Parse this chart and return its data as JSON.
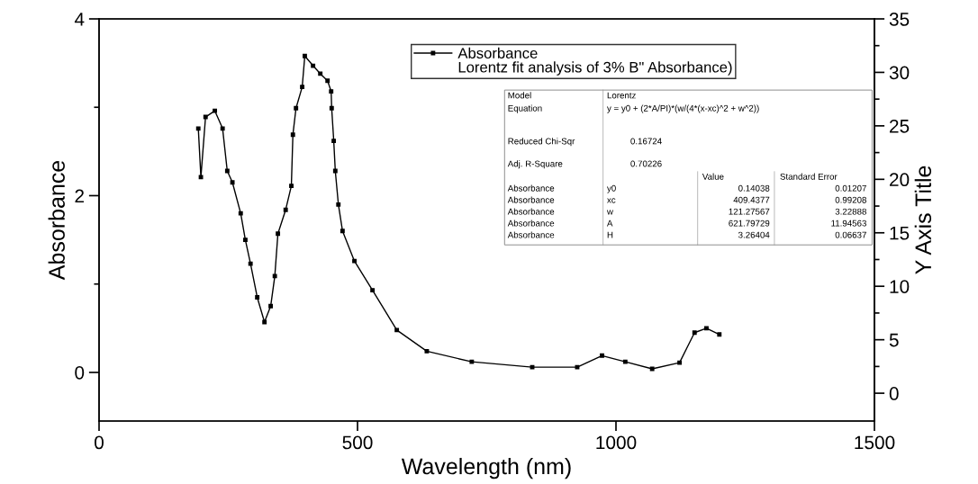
{
  "chart_data": {
    "type": "line",
    "xlabel": "Wavelength (nm)",
    "ylabel": "Absorbance",
    "y2label": "Y Axis Title",
    "xlim": [
      0,
      1500
    ],
    "xticks": [
      0,
      500,
      1000,
      1500
    ],
    "ylim": [
      -0.55,
      4
    ],
    "yticks": [
      0,
      2,
      4
    ],
    "y2lim": [
      -2.6,
      35
    ],
    "y2ticks": [
      0,
      5,
      10,
      15,
      20,
      25,
      30,
      35
    ],
    "marker": "square",
    "line_style": "solid",
    "legend": "top right",
    "grid": false,
    "series": [
      {
        "name": "Absorbance",
        "color": "#000000",
        "x": [
          192,
          197,
          206,
          224,
          239,
          248,
          258,
          274,
          283,
          293,
          306,
          320,
          332,
          340,
          346,
          361,
          372,
          375,
          381,
          393,
          398,
          414,
          428,
          442,
          449,
          450,
          454,
          457,
          463,
          471,
          494,
          529,
          576,
          634,
          721,
          838,
          925,
          973,
          1018,
          1070,
          1123,
          1152,
          1175,
          1200
        ],
        "values": [
          2.76,
          2.21,
          2.89,
          2.96,
          2.76,
          2.28,
          2.15,
          1.8,
          1.5,
          1.23,
          0.85,
          0.57,
          0.75,
          1.09,
          1.57,
          1.84,
          2.11,
          2.69,
          2.99,
          3.23,
          3.58,
          3.47,
          3.38,
          3.3,
          3.18,
          2.99,
          2.62,
          2.28,
          1.9,
          1.6,
          1.26,
          0.93,
          0.48,
          0.24,
          0.12,
          0.06,
          0.06,
          0.19,
          0.12,
          0.04,
          0.11,
          0.45,
          0.5,
          0.43
        ]
      }
    ],
    "annotations": [
      "Lorentz fit analysis of 3% B\" Absorbance)",
      "Model",
      "Lorentz",
      "Equation",
      "y = y0 + (2*A/PI)*(w/(4*(x-xc)^2 + w^2))",
      "Reduced Chi-Sqr",
      "0.16724",
      "Adj. R-Square",
      "0.70226",
      "Value",
      "Standard Error",
      "Absorbance",
      "y0",
      "0.14038",
      "0.01207",
      "Absorbance",
      "xc",
      "409.4377",
      "0.99208",
      "Absorbance",
      "w",
      "121.27567",
      "3.22888",
      "Absorbance",
      "A",
      "621.79729",
      "11.94563",
      "Absorbance",
      "H",
      "3.26404",
      "0.06637"
    ]
  }
}
